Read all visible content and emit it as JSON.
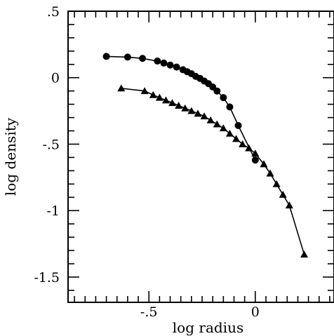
{
  "chart_data": {
    "type": "line",
    "xlabel": "log radius",
    "ylabel": "log density",
    "xlim": [
      -0.88,
      0.37
    ],
    "ylim": [
      -1.69,
      0.5
    ],
    "x_ticks": [
      {
        "value": -0.5,
        "label": "-.5"
      },
      {
        "value": 0,
        "label": "0"
      }
    ],
    "y_ticks": [
      {
        "value": 0.5,
        "label": ".5"
      },
      {
        "value": 0,
        "label": "0"
      },
      {
        "value": -0.5,
        "label": "-.5"
      },
      {
        "value": -1,
        "label": "-1"
      },
      {
        "value": -1.5,
        "label": "-1.5"
      }
    ],
    "series": [
      {
        "marker": "circle",
        "x": [
          -0.7,
          -0.6,
          -0.53,
          -0.46,
          -0.43,
          -0.4,
          -0.37,
          -0.34,
          -0.32,
          -0.3,
          -0.28,
          -0.26,
          -0.24,
          -0.22,
          -0.2,
          -0.18,
          -0.15,
          -0.12,
          -0.08,
          0.0
        ],
        "y": [
          0.16,
          0.155,
          0.145,
          0.125,
          0.11,
          0.095,
          0.08,
          0.06,
          0.045,
          0.03,
          0.01,
          -0.005,
          -0.025,
          -0.045,
          -0.07,
          -0.1,
          -0.15,
          -0.22,
          -0.36,
          -0.62
        ]
      },
      {
        "marker": "triangle",
        "x": [
          -0.63,
          -0.52,
          -0.48,
          -0.45,
          -0.42,
          -0.39,
          -0.36,
          -0.33,
          -0.3,
          -0.27,
          -0.24,
          -0.21,
          -0.18,
          -0.15,
          -0.12,
          -0.09,
          -0.06,
          -0.03,
          0.0,
          0.04,
          0.07,
          0.1,
          0.13,
          0.16,
          0.23
        ],
        "y": [
          -0.08,
          -0.1,
          -0.13,
          -0.15,
          -0.17,
          -0.19,
          -0.21,
          -0.23,
          -0.25,
          -0.27,
          -0.29,
          -0.32,
          -0.35,
          -0.38,
          -0.42,
          -0.46,
          -0.5,
          -0.53,
          -0.57,
          -0.65,
          -0.72,
          -0.8,
          -0.88,
          -0.96,
          -1.33
        ]
      }
    ]
  }
}
